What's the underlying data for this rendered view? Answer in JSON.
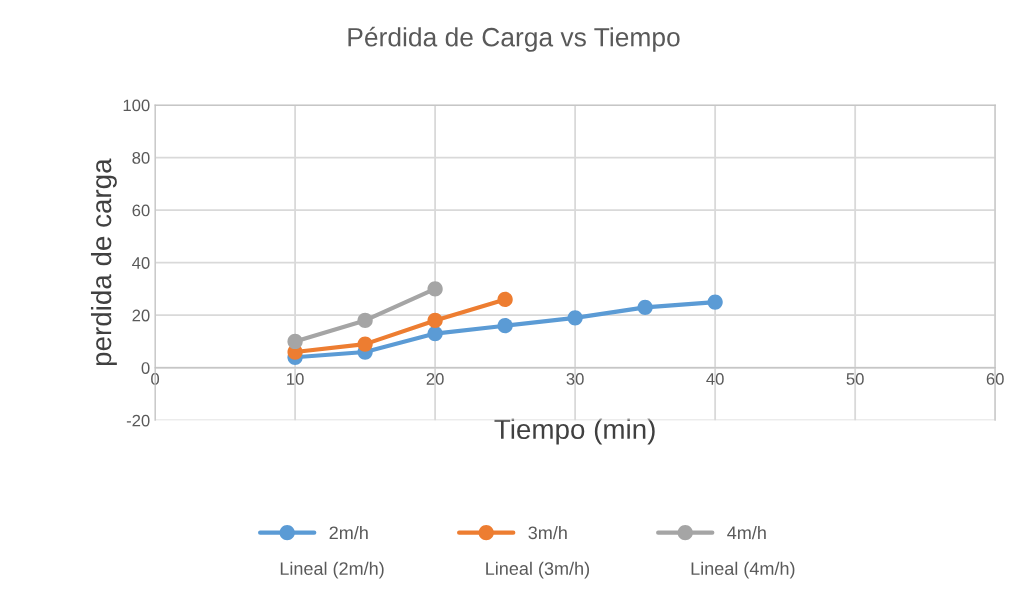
{
  "chart_data": {
    "type": "line",
    "title": "Pérdida de Carga vs Tiempo",
    "xlabel": "Tiempo (min)",
    "ylabel": "perdida de carga",
    "series": [
      {
        "name": "2m/h",
        "color": "#5b9bd5",
        "x": [
          10,
          15,
          20,
          25,
          30,
          35,
          40
        ],
        "values": [
          4,
          6,
          13,
          16,
          19,
          23,
          25
        ]
      },
      {
        "name": "3m/h",
        "color": "#ed7d31",
        "x": [
          10,
          15,
          20,
          25
        ],
        "values": [
          6,
          9,
          18,
          26
        ]
      },
      {
        "name": "4m/h",
        "color": "#a5a5a5",
        "x": [
          10,
          15,
          20
        ],
        "values": [
          10,
          18,
          30
        ]
      }
    ],
    "xlim": [
      0,
      60
    ],
    "xticks": [
      0,
      10,
      20,
      30,
      40,
      50,
      60
    ],
    "ylim": [
      -20,
      100
    ],
    "yticks": [
      -20,
      0,
      20,
      40,
      60,
      80,
      100
    ],
    "grid": true,
    "legend": "bottom",
    "marker": "circle",
    "annotations": [
      "Lineal (2m/h)",
      "Lineal (3m/h)",
      "Lineal (4m/h)"
    ]
  }
}
